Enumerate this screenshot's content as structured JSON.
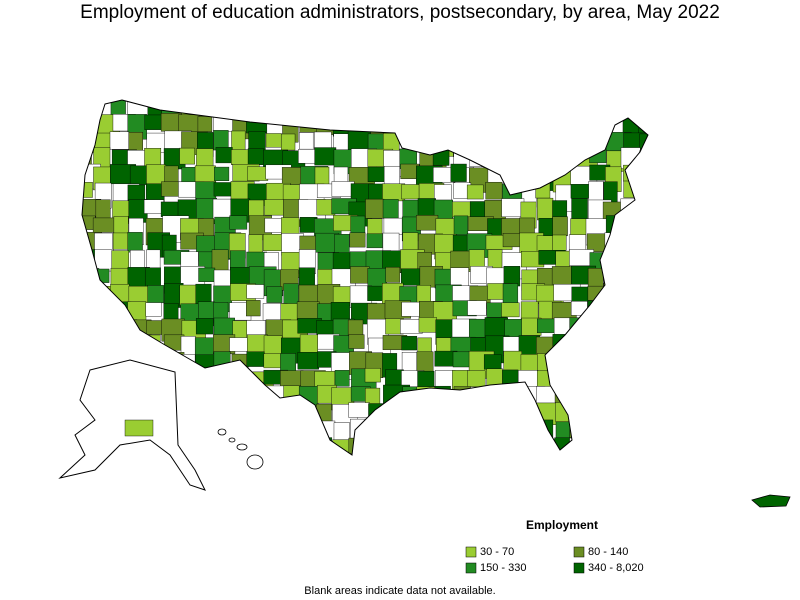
{
  "title": "Employment of education administrators, postsecondary, by area, May 2022",
  "legend": {
    "title": "Employment",
    "items": [
      {
        "label": "30 - 70",
        "color": "#9acd32"
      },
      {
        "label": "80 - 140",
        "color": "#6b8e23"
      },
      {
        "label": "150 - 330",
        "color": "#228b22"
      },
      {
        "label": "340 - 8,020",
        "color": "#006400"
      }
    ]
  },
  "note": "Blank areas indicate data not available."
}
